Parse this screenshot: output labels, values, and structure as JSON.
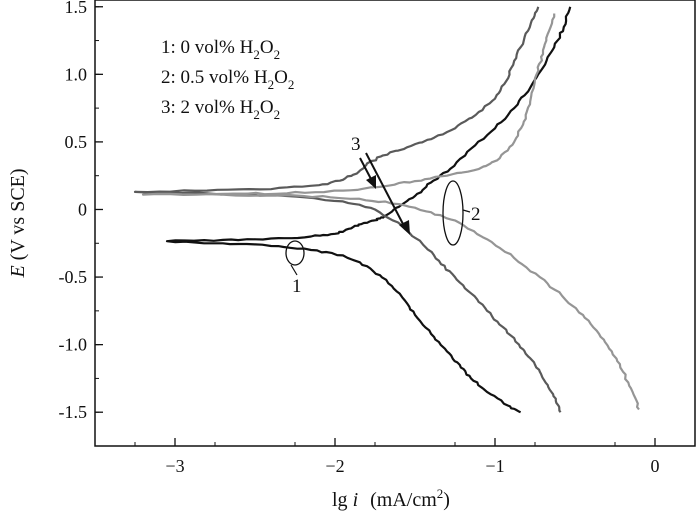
{
  "chart_data": {
    "type": "line",
    "title": "",
    "xlabel": {
      "prefix": "lg ",
      "var": "i",
      "unit": "(mA/cm",
      "unit_sup": "2",
      "unit_end": ")"
    },
    "ylabel": {
      "var": "E",
      "rest": " (V vs SCE)"
    },
    "xlim": [
      -3.5,
      0.25
    ],
    "ylim": [
      -1.75,
      1.55
    ],
    "xticks": [
      -3,
      -2,
      -1,
      0
    ],
    "xtick_labels": [
      "−3",
      "−2",
      "−1",
      "0"
    ],
    "yticks": [
      1.5,
      1.0,
      0.5,
      0,
      -0.5,
      -1.0,
      -1.5
    ],
    "ytick_labels": [
      "1.5",
      "1.0",
      "0.5",
      "0",
      "-0.5",
      "-1.0",
      "-1.5"
    ],
    "grid": false,
    "legend_position": "top-left",
    "legend": [
      {
        "prefix": "1: 0 vol% H",
        "mid": "O"
      },
      {
        "prefix": "2: 0.5 vol% H",
        "mid": "O"
      },
      {
        "prefix": "3: 2 vol% H",
        "mid": "O"
      }
    ],
    "legend_sub": "2",
    "annotations": {
      "label_1": "1",
      "label_2": "2",
      "label_3": "3"
    },
    "series": [
      {
        "color": "#111111",
        "points": [
          [
            -0.84,
            -1.5
          ],
          [
            -0.92,
            -1.45
          ],
          [
            -1.05,
            -1.35
          ],
          [
            -1.15,
            -1.25
          ],
          [
            -1.22,
            -1.15
          ],
          [
            -1.3,
            -1.05
          ],
          [
            -1.4,
            -0.92
          ],
          [
            -1.5,
            -0.78
          ],
          [
            -1.58,
            -0.65
          ],
          [
            -1.68,
            -0.52
          ],
          [
            -1.8,
            -0.42
          ],
          [
            -1.95,
            -0.34
          ],
          [
            -2.15,
            -0.3
          ],
          [
            -2.4,
            -0.27
          ],
          [
            -2.7,
            -0.25
          ],
          [
            -3.05,
            -0.235
          ],
          [
            -2.7,
            -0.225
          ],
          [
            -2.4,
            -0.215
          ],
          [
            -2.15,
            -0.2
          ],
          [
            -2.0,
            -0.18
          ],
          [
            -1.9,
            -0.14
          ],
          [
            -1.82,
            -0.1
          ],
          [
            -1.75,
            -0.08
          ],
          [
            -1.7,
            -0.06
          ],
          [
            -1.6,
            0.02
          ],
          [
            -1.5,
            0.1
          ],
          [
            -1.4,
            0.2
          ],
          [
            -1.28,
            0.3
          ],
          [
            -1.15,
            0.45
          ],
          [
            -1.0,
            0.6
          ],
          [
            -0.88,
            0.75
          ],
          [
            -0.78,
            0.9
          ],
          [
            -0.7,
            1.05
          ],
          [
            -0.63,
            1.2
          ],
          [
            -0.57,
            1.35
          ],
          [
            -0.53,
            1.5
          ]
        ]
      },
      {
        "color": "#5a5a5a",
        "points": [
          [
            -0.59,
            -1.5
          ],
          [
            -0.62,
            -1.4
          ],
          [
            -0.67,
            -1.3
          ],
          [
            -0.72,
            -1.2
          ],
          [
            -0.78,
            -1.1
          ],
          [
            -0.85,
            -1.0
          ],
          [
            -0.95,
            -0.87
          ],
          [
            -1.05,
            -0.75
          ],
          [
            -1.15,
            -0.62
          ],
          [
            -1.25,
            -0.5
          ],
          [
            -1.35,
            -0.38
          ],
          [
            -1.45,
            -0.26
          ],
          [
            -1.58,
            -0.12
          ],
          [
            -1.75,
            0.0
          ],
          [
            -1.95,
            0.06
          ],
          [
            -2.3,
            0.1
          ],
          [
            -2.8,
            0.12
          ],
          [
            -3.25,
            0.13
          ],
          [
            -2.8,
            0.14
          ],
          [
            -2.4,
            0.15
          ],
          [
            -2.1,
            0.18
          ],
          [
            -1.95,
            0.22
          ],
          [
            -1.85,
            0.28
          ],
          [
            -1.8,
            0.34
          ],
          [
            -1.7,
            0.4
          ],
          [
            -1.55,
            0.46
          ],
          [
            -1.4,
            0.52
          ],
          [
            -1.25,
            0.6
          ],
          [
            -1.12,
            0.7
          ],
          [
            -1.0,
            0.82
          ],
          [
            -0.93,
            0.95
          ],
          [
            -0.88,
            1.1
          ],
          [
            -0.82,
            1.25
          ],
          [
            -0.77,
            1.4
          ],
          [
            -0.73,
            1.5
          ]
        ]
      },
      {
        "color": "#959595",
        "points": [
          [
            -0.1,
            -1.48
          ],
          [
            -0.14,
            -1.35
          ],
          [
            -0.2,
            -1.2
          ],
          [
            -0.27,
            -1.05
          ],
          [
            -0.35,
            -0.92
          ],
          [
            -0.45,
            -0.78
          ],
          [
            -0.58,
            -0.64
          ],
          [
            -0.72,
            -0.5
          ],
          [
            -0.88,
            -0.36
          ],
          [
            -1.05,
            -0.22
          ],
          [
            -1.22,
            -0.1
          ],
          [
            -1.4,
            -0.02
          ],
          [
            -1.6,
            0.04
          ],
          [
            -1.85,
            0.08
          ],
          [
            -2.2,
            0.1
          ],
          [
            -2.7,
            0.11
          ],
          [
            -3.2,
            0.11
          ],
          [
            -2.7,
            0.115
          ],
          [
            -2.3,
            0.12
          ],
          [
            -1.95,
            0.14
          ],
          [
            -1.7,
            0.17
          ],
          [
            -1.5,
            0.21
          ],
          [
            -1.3,
            0.25
          ],
          [
            -1.1,
            0.3
          ],
          [
            -0.97,
            0.38
          ],
          [
            -0.88,
            0.5
          ],
          [
            -0.82,
            0.65
          ],
          [
            -0.78,
            0.8
          ],
          [
            -0.74,
            1.0
          ],
          [
            -0.7,
            1.15
          ],
          [
            -0.67,
            1.3
          ],
          [
            -0.63,
            1.45
          ]
        ]
      }
    ]
  }
}
